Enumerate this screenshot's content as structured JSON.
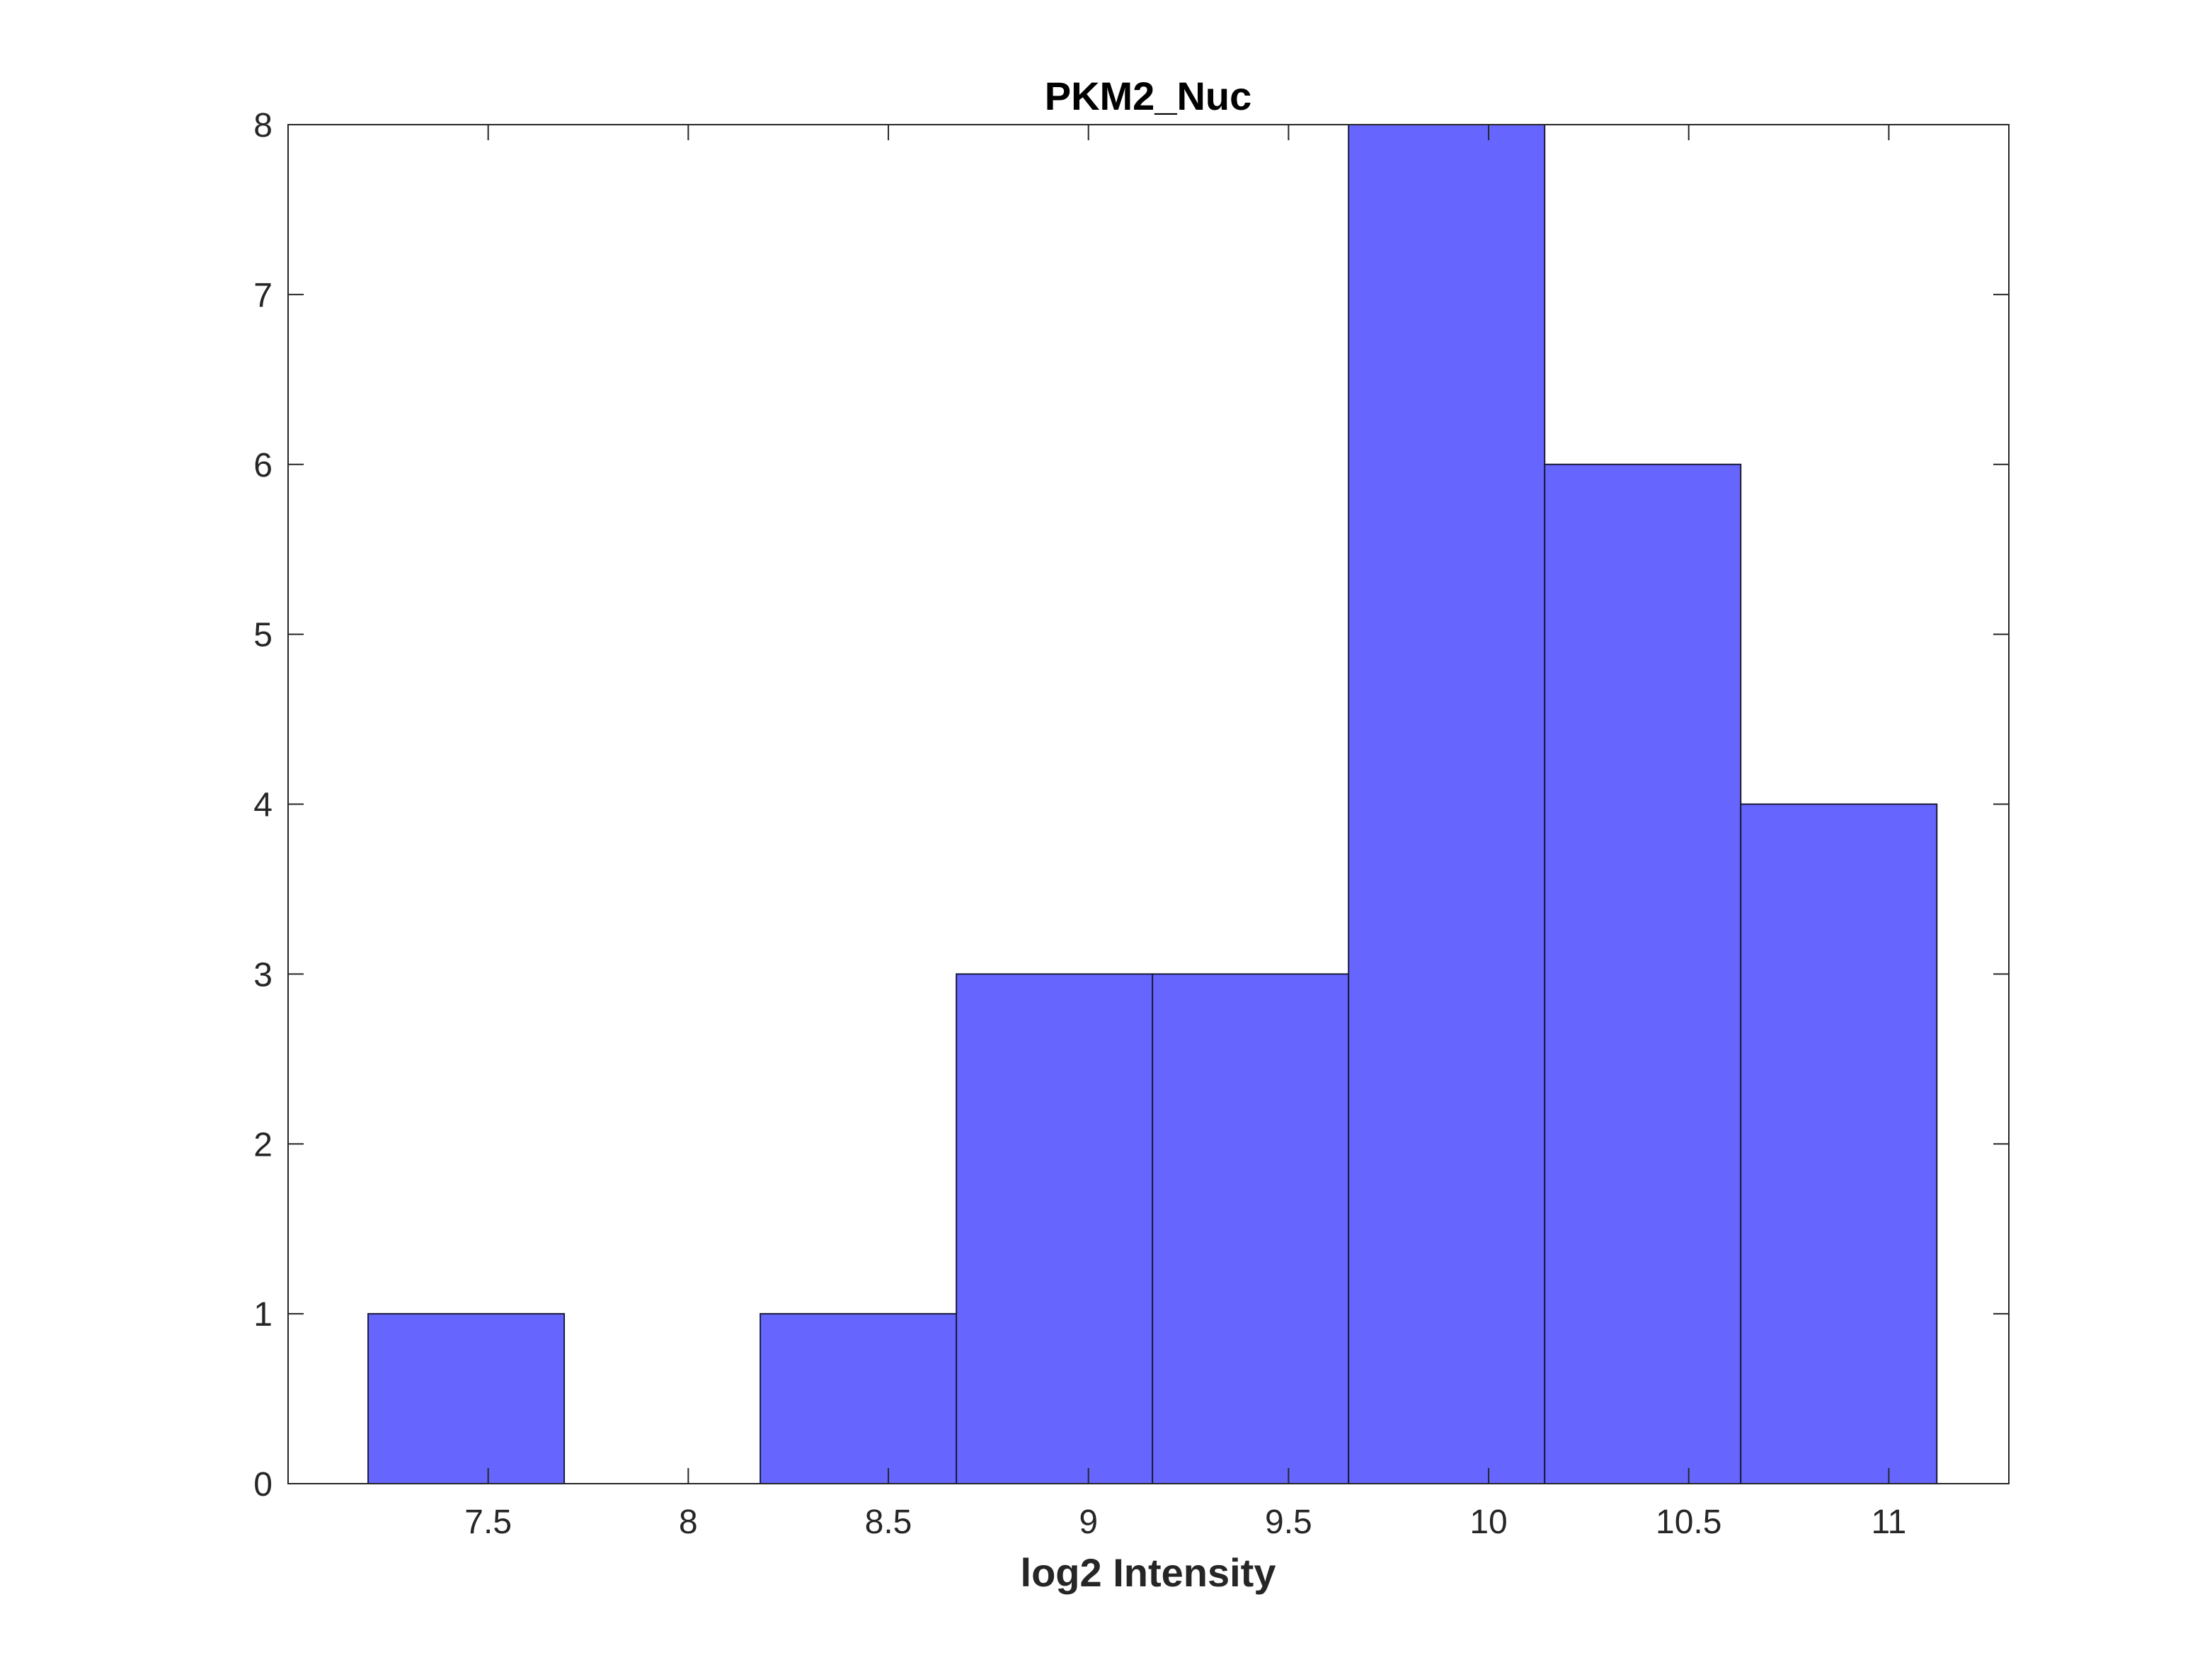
{
  "chart_data": {
    "type": "bar",
    "subtype": "histogram",
    "title": "PKM2_Nuc",
    "xlabel": "log2 Intensity",
    "ylabel": "",
    "xlim": [
      7.0,
      11.3
    ],
    "ylim": [
      0,
      8
    ],
    "xticks": [
      "7.5",
      "8",
      "8.5",
      "9",
      "9.5",
      "10",
      "10.5",
      "11"
    ],
    "yticks": [
      "0",
      "1",
      "2",
      "3",
      "4",
      "5",
      "6",
      "7",
      "8"
    ],
    "bin_edges": [
      7.2,
      7.69,
      8.18,
      8.67,
      9.16,
      9.65,
      10.14,
      10.63,
      11.12
    ],
    "counts": [
      1,
      0,
      1,
      3,
      3,
      8,
      6,
      4
    ],
    "bar_color": "#6666ff",
    "edge_color": "#1a1a3a",
    "grid": false
  }
}
